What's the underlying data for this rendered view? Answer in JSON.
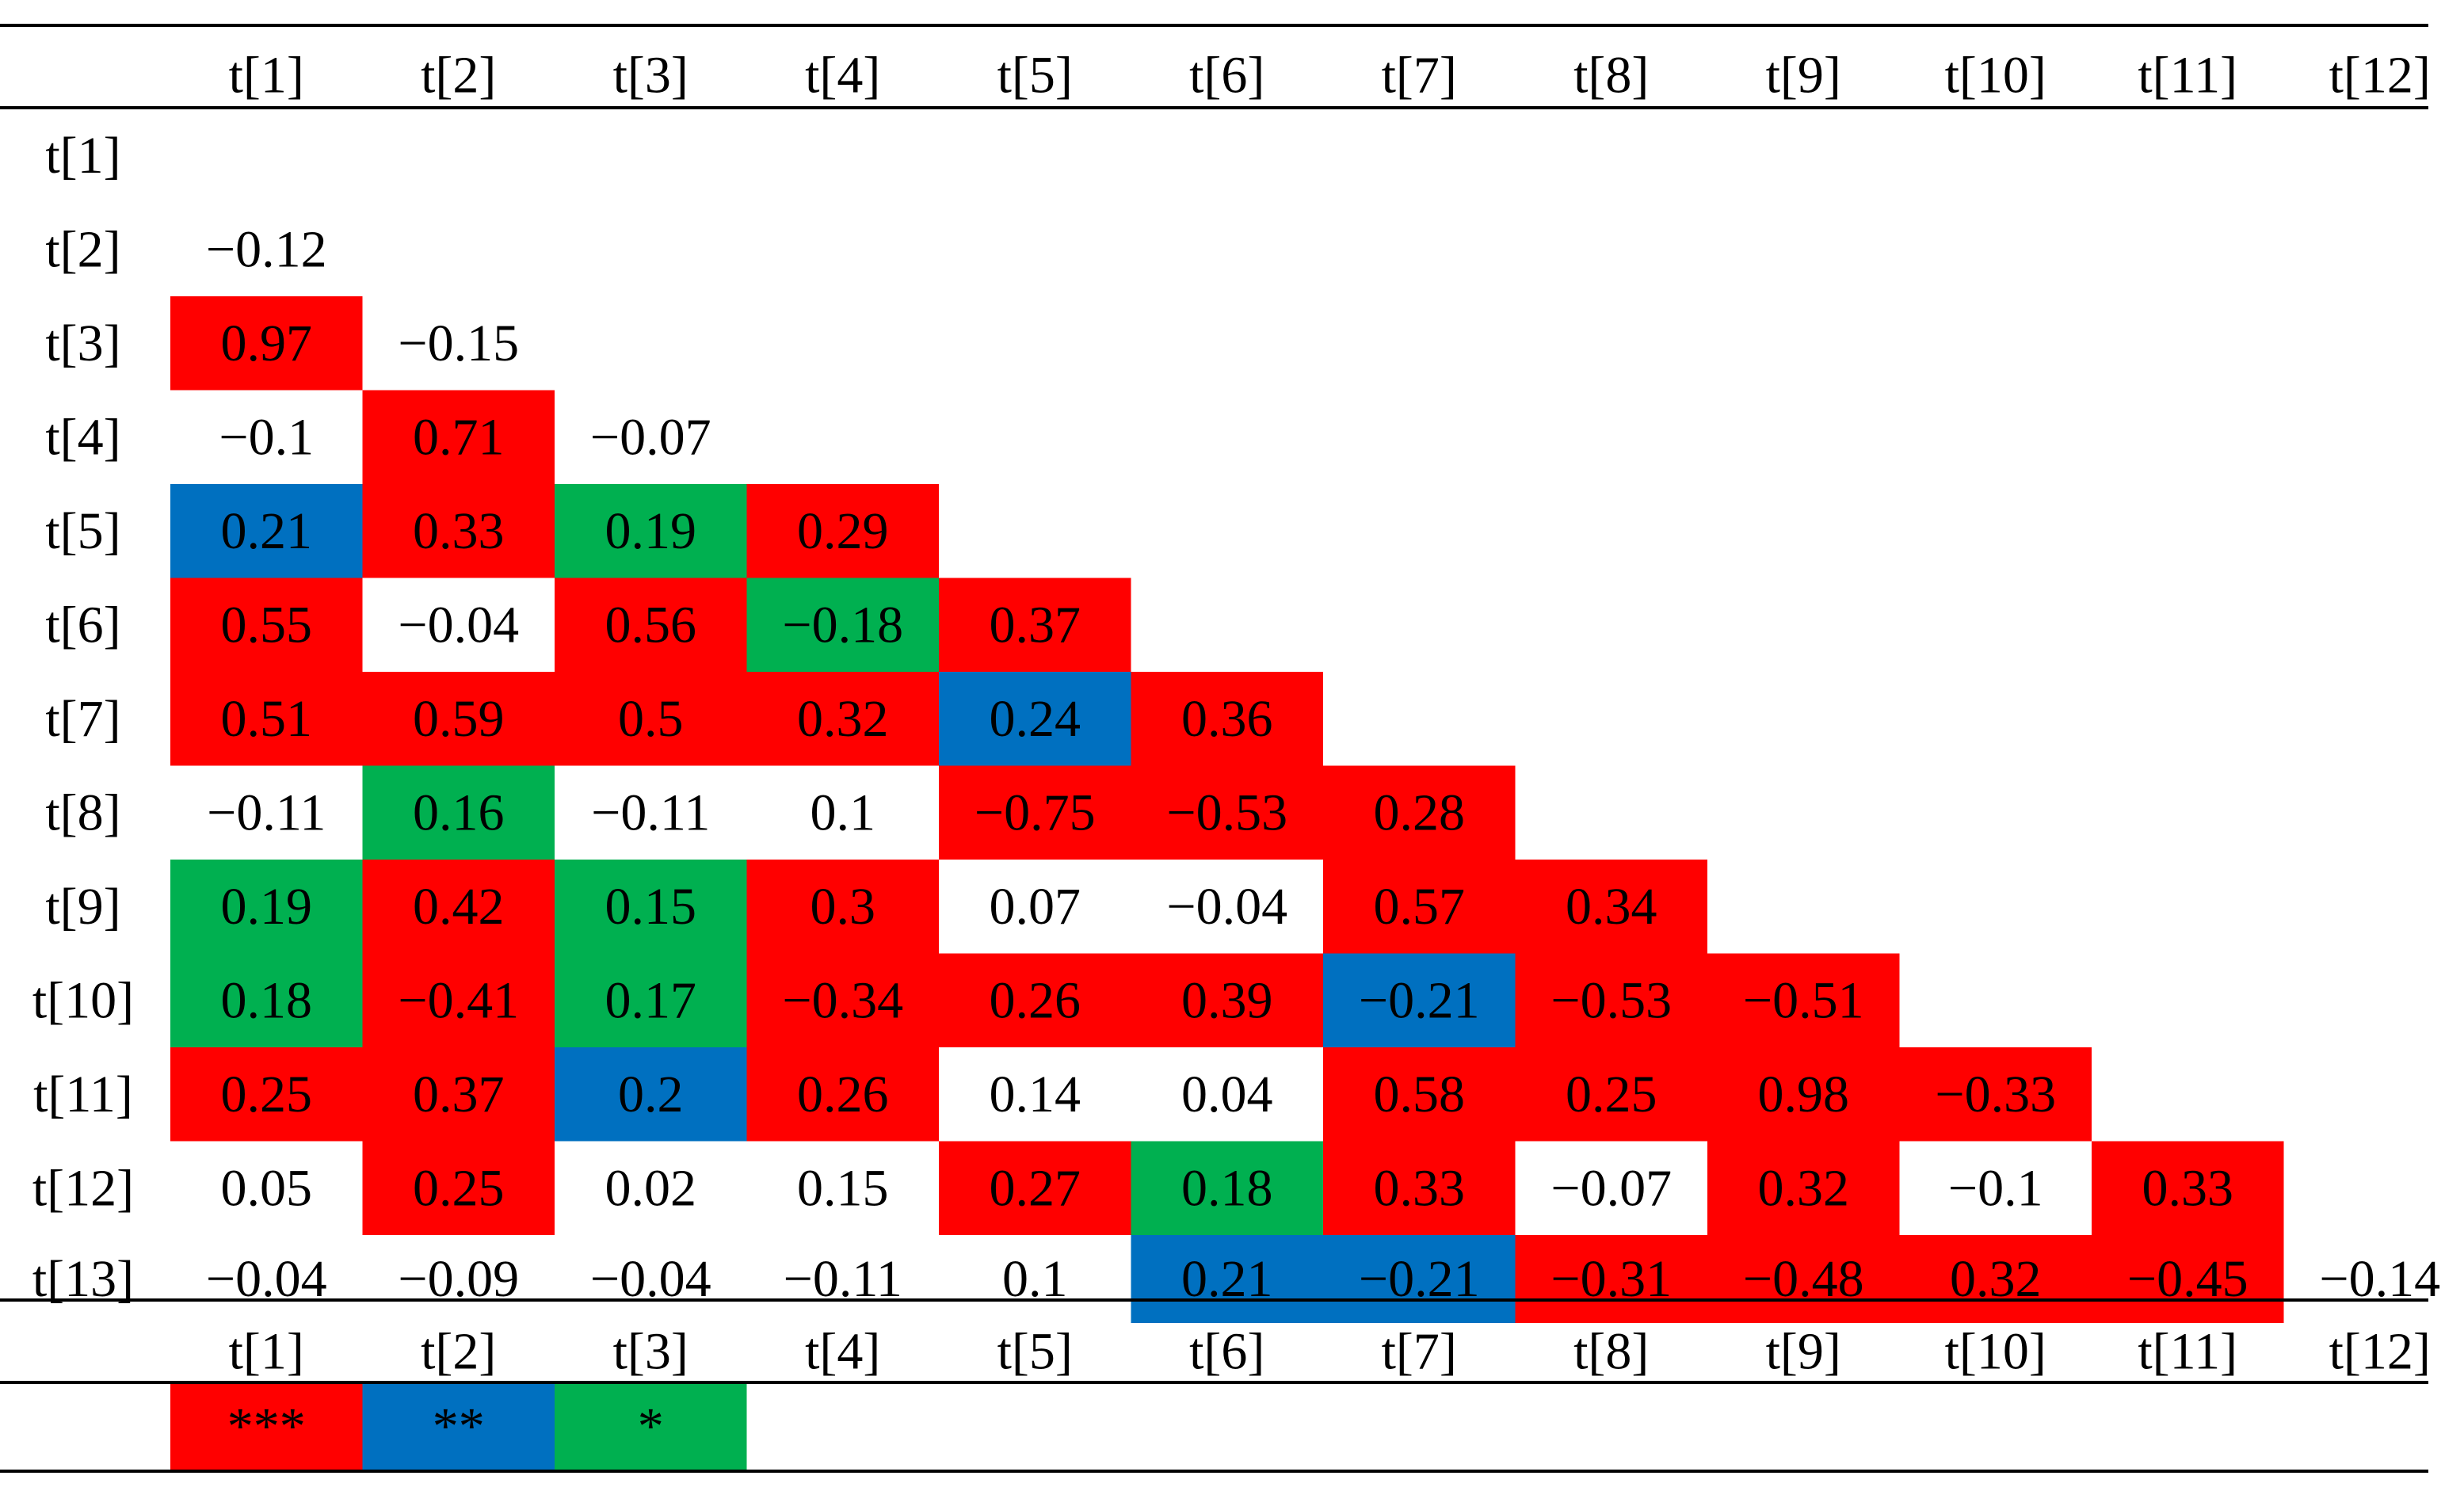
{
  "chart_data": {
    "type": "heatmap",
    "title": "",
    "xlabel": "",
    "ylabel": "",
    "columns": [
      "t[1]",
      "t[2]",
      "t[3]",
      "t[4]",
      "t[5]",
      "t[6]",
      "t[7]",
      "t[8]",
      "t[9]",
      "t[10]",
      "t[11]",
      "t[12]"
    ],
    "rows": [
      "t[1]",
      "t[2]",
      "t[3]",
      "t[4]",
      "t[5]",
      "t[6]",
      "t[7]",
      "t[8]",
      "t[9]",
      "t[10]",
      "t[11]",
      "t[12]",
      "t[13]"
    ],
    "values": [
      [],
      [
        "−0.12"
      ],
      [
        "0.97",
        "−0.15"
      ],
      [
        "−0.1",
        "0.71",
        "−0.07"
      ],
      [
        "0.21",
        "0.33",
        "0.19",
        "0.29"
      ],
      [
        "0.55",
        "−0.04",
        "0.56",
        "−0.18",
        "0.37"
      ],
      [
        "0.51",
        "0.59",
        "0.5",
        "0.32",
        "0.24",
        "0.36"
      ],
      [
        "−0.11",
        "0.16",
        "−0.11",
        "0.1",
        "−0.75",
        "−0.53",
        "0.28"
      ],
      [
        "0.19",
        "0.42",
        "0.15",
        "0.3",
        "0.07",
        "−0.04",
        "0.57",
        "0.34"
      ],
      [
        "0.18",
        "−0.41",
        "0.17",
        "−0.34",
        "0.26",
        "0.39",
        "−0.21",
        "−0.53",
        "−0.51"
      ],
      [
        "0.25",
        "0.37",
        "0.2",
        "0.26",
        "0.14",
        "0.04",
        "0.58",
        "0.25",
        "0.98",
        "−0.33"
      ],
      [
        "0.05",
        "0.25",
        "0.02",
        "0.15",
        "0.27",
        "0.18",
        "0.33",
        "−0.07",
        "0.32",
        "−0.1",
        "0.33"
      ],
      [
        "−0.04",
        "−0.09",
        "−0.04",
        "−0.11",
        "0.1",
        "0.21",
        "−0.21",
        "−0.31",
        "−0.48",
        "0.32",
        "−0.45",
        "−0.14"
      ]
    ],
    "significance": [
      [],
      [
        0
      ],
      [
        3,
        0
      ],
      [
        0,
        3,
        0
      ],
      [
        2,
        3,
        1,
        3
      ],
      [
        3,
        0,
        3,
        1,
        3
      ],
      [
        3,
        3,
        3,
        3,
        2,
        3
      ],
      [
        0,
        1,
        0,
        0,
        3,
        3,
        3
      ],
      [
        1,
        3,
        1,
        3,
        0,
        0,
        3,
        3
      ],
      [
        1,
        3,
        1,
        3,
        3,
        3,
        2,
        3,
        3
      ],
      [
        3,
        3,
        2,
        3,
        0,
        0,
        3,
        3,
        3,
        3
      ],
      [
        0,
        3,
        0,
        0,
        3,
        1,
        3,
        0,
        3,
        0,
        3
      ],
      [
        0,
        0,
        0,
        0,
        0,
        2,
        2,
        3,
        3,
        3,
        3,
        0
      ]
    ],
    "significance_colors": {
      "1": "#00b050",
      "2": "#0070c0",
      "3": "#ff0000"
    },
    "legend": [
      {
        "label": "***",
        "color": "#ff0000"
      },
      {
        "label": "**",
        "color": "#0070c0"
      },
      {
        "label": "*",
        "color": "#00b050"
      }
    ]
  }
}
